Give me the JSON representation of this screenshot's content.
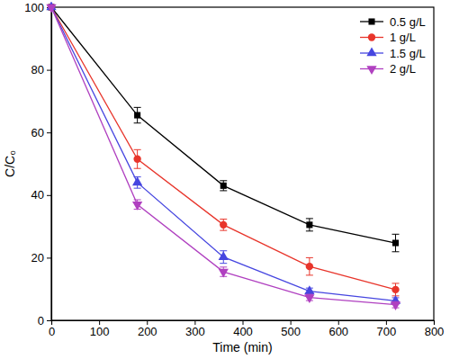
{
  "chart_data": {
    "type": "line",
    "x_label": "Time (min)",
    "y_label": "C/C₀",
    "x": [
      0,
      180,
      360,
      540,
      720
    ],
    "xlim": [
      0,
      800
    ],
    "xticks": [
      0,
      100,
      200,
      300,
      400,
      500,
      600,
      700,
      800
    ],
    "ylim": [
      0,
      100
    ],
    "yticks": [
      0,
      20,
      40,
      60,
      80,
      100
    ],
    "legend": "upper right",
    "grid": false,
    "series": [
      {
        "name": "0.5 g/L",
        "color": "#000000",
        "marker": "square",
        "values": [
          100,
          65.5,
          43,
          30.5,
          24.7
        ],
        "errors": [
          null,
          2.5,
          1.6,
          2.0,
          2.8
        ]
      },
      {
        "name": "1 g/L",
        "color": "#e8352b",
        "marker": "circle",
        "values": [
          100,
          51.5,
          30.5,
          17.2,
          9.8
        ],
        "errors": [
          null,
          3.0,
          1.8,
          2.8,
          2.0
        ]
      },
      {
        "name": "1.5 g/L",
        "color": "#4646e0",
        "marker": "triangle-up",
        "values": [
          100,
          44,
          20.2,
          9.3,
          6.2
        ],
        "errors": [
          null,
          1.8,
          2.0,
          1.0,
          1.0
        ]
      },
      {
        "name": "2 g/L",
        "color": "#b040c0",
        "marker": "triangle-down",
        "values": [
          100,
          37,
          15.5,
          7.3,
          5.0
        ],
        "errors": [
          null,
          1.5,
          1.5,
          1.0,
          1.0
        ]
      }
    ]
  }
}
